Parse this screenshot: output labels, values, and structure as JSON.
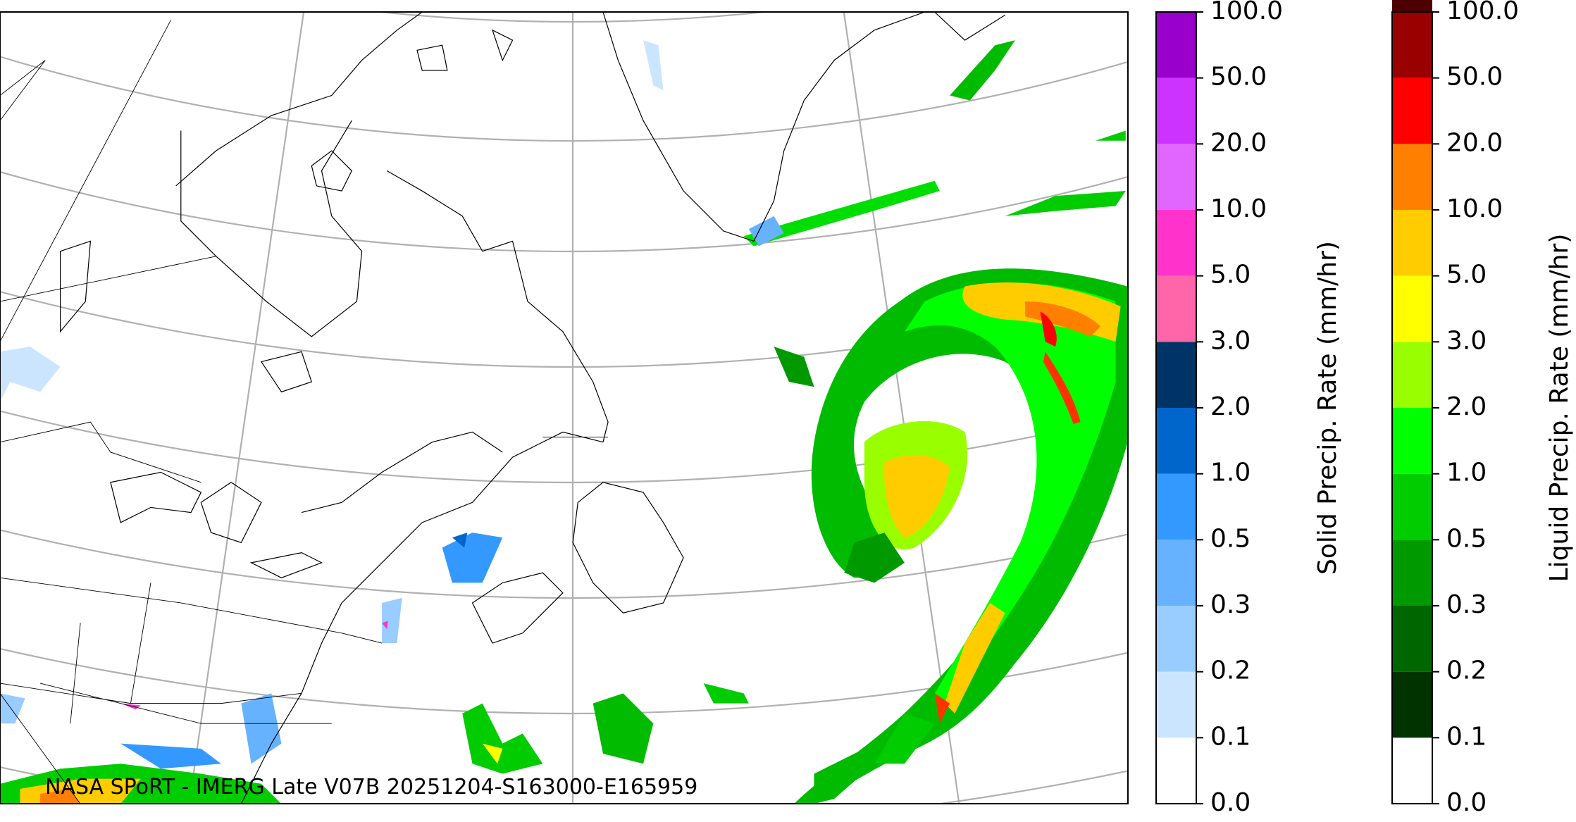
{
  "map": {
    "caption": "NASA SPoRT - IMERG Late V07B 20251204-S163000-E165959"
  },
  "colorbars": [
    {
      "label": "Solid Precip. Rate (mm/hr)",
      "ticks": [
        {
          "value": 0,
          "label": "0.0"
        },
        {
          "value": 0.1,
          "label": "0.1"
        },
        {
          "value": 0.2,
          "label": "0.2"
        },
        {
          "value": 0.3,
          "label": "0.3"
        },
        {
          "value": 0.5,
          "label": "0.5"
        },
        {
          "value": 1,
          "label": "1.0"
        },
        {
          "value": 2,
          "label": "2.0"
        },
        {
          "value": 3,
          "label": "3.0"
        },
        {
          "value": 5,
          "label": "5.0"
        },
        {
          "value": 10,
          "label": "10.0"
        },
        {
          "value": 20,
          "label": "20.0"
        },
        {
          "value": 50,
          "label": "50.0"
        },
        {
          "value": 100,
          "label": "100.0"
        }
      ],
      "colors": [
        "#ffffff",
        "#cce5ff",
        "#99ccff",
        "#66b2ff",
        "#3399ff",
        "#0066cc",
        "#003366",
        "#ff66aa",
        "#ff33cc",
        "#e066ff",
        "#cc33ff",
        "#9900cc"
      ]
    },
    {
      "label": "Liquid Precip. Rate (mm/hr)",
      "ticks": [
        {
          "value": 0,
          "label": "0.0"
        },
        {
          "value": 0.1,
          "label": "0.1"
        },
        {
          "value": 0.2,
          "label": "0.2"
        },
        {
          "value": 0.3,
          "label": "0.3"
        },
        {
          "value": 0.5,
          "label": "0.5"
        },
        {
          "value": 1,
          "label": "1.0"
        },
        {
          "value": 2,
          "label": "2.0"
        },
        {
          "value": 3,
          "label": "3.0"
        },
        {
          "value": 5,
          "label": "5.0"
        },
        {
          "value": 10,
          "label": "10.0"
        },
        {
          "value": 20,
          "label": "20.0"
        },
        {
          "value": 50,
          "label": "50.0"
        },
        {
          "value": 100,
          "label": "100.0"
        }
      ],
      "colors": [
        "#ffffff",
        "#003300",
        "#006600",
        "#009900",
        "#00cc00",
        "#00ff00",
        "#99ff00",
        "#ffff00",
        "#ffcc00",
        "#ff8000",
        "#ff0000",
        "#990000",
        "#4d0000"
      ]
    }
  ]
}
